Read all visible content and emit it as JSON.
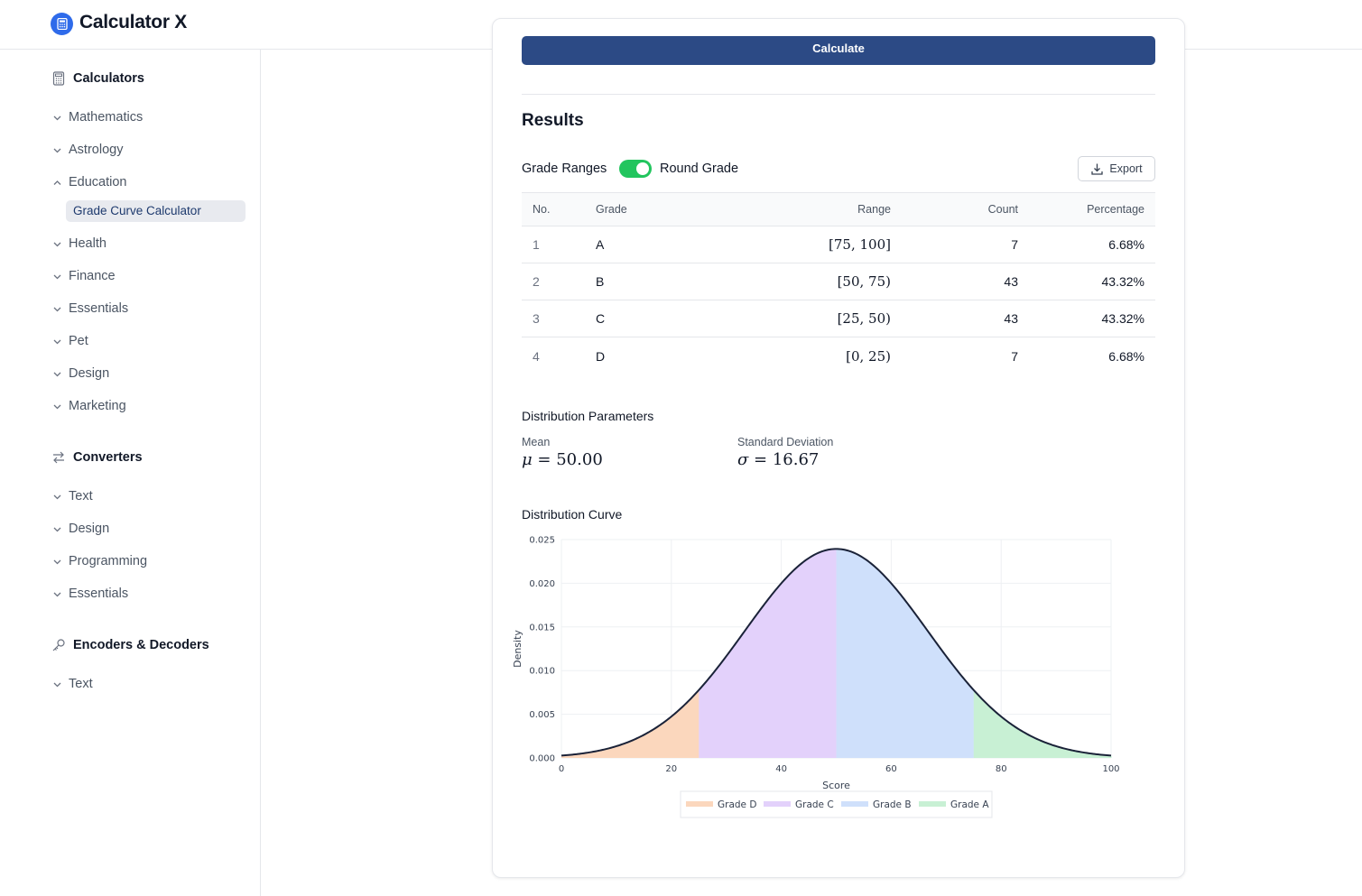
{
  "app": {
    "title": "Calculator X"
  },
  "sidebar": {
    "calculators": {
      "heading": "Calculators",
      "items": [
        {
          "label": "Mathematics"
        },
        {
          "label": "Astrology"
        },
        {
          "label": "Education",
          "expanded": true,
          "children": [
            {
              "label": "Grade Curve Calculator",
              "active": true
            }
          ]
        },
        {
          "label": "Health"
        },
        {
          "label": "Finance"
        },
        {
          "label": "Essentials"
        },
        {
          "label": "Pet"
        },
        {
          "label": "Design"
        },
        {
          "label": "Marketing"
        }
      ]
    },
    "converters": {
      "heading": "Converters",
      "items": [
        {
          "label": "Text"
        },
        {
          "label": "Design"
        },
        {
          "label": "Programming"
        },
        {
          "label": "Essentials"
        }
      ]
    },
    "encoders": {
      "heading": "Encoders & Decoders",
      "items": [
        {
          "label": "Text"
        }
      ]
    }
  },
  "main": {
    "calculate_label": "Calculate",
    "results_title": "Results",
    "grade_ranges_label": "Grade Ranges",
    "round_grade": {
      "label": "Round Grade",
      "on": true
    },
    "export_label": "Export",
    "table": {
      "headers": {
        "no": "No.",
        "grade": "Grade",
        "range": "Range",
        "count": "Count",
        "percentage": "Percentage"
      },
      "rows": [
        {
          "no": "1",
          "grade": "A",
          "range": "[75, 100]",
          "count": "7",
          "percentage": "6.68%"
        },
        {
          "no": "2",
          "grade": "B",
          "range": "[50, 75)",
          "count": "43",
          "percentage": "43.32%"
        },
        {
          "no": "3",
          "grade": "C",
          "range": "[25, 50)",
          "count": "43",
          "percentage": "43.32%"
        },
        {
          "no": "4",
          "grade": "D",
          "range": "[0, 25)",
          "count": "7",
          "percentage": "6.68%"
        }
      ]
    },
    "distribution_parameters": {
      "title": "Distribution Parameters",
      "mean": {
        "label": "Mean",
        "symbol": "μ",
        "value": "50.00"
      },
      "std": {
        "label": "Standard Deviation",
        "symbol": "σ",
        "value": "16.67"
      }
    },
    "curve_title": "Distribution Curve"
  },
  "colors": {
    "accent": "#2c4a85",
    "toggle_on": "#22c55e",
    "logo": "#2f6bea",
    "grade_d": "#fbd7bd",
    "grade_c": "#e3d1fb",
    "grade_b": "#cfe0fb",
    "grade_a": "#c8f0d4"
  },
  "chart_data": {
    "type": "area",
    "title": "",
    "xlabel": "Score",
    "ylabel": "Density",
    "xlim": [
      0,
      100
    ],
    "ylim": [
      0,
      0.025
    ],
    "xticks": [
      0,
      20,
      40,
      60,
      80,
      100
    ],
    "yticks": [
      "0.000",
      "0.005",
      "0.010",
      "0.015",
      "0.020",
      "0.025"
    ],
    "distribution": {
      "kind": "normal",
      "mean": 50,
      "std": 16.67
    },
    "grid": true,
    "legend_position": "bottom-center",
    "series": [
      {
        "name": "Grade D",
        "x_range": [
          0,
          25
        ],
        "color": "#fbd7bd"
      },
      {
        "name": "Grade C",
        "x_range": [
          25,
          50
        ],
        "color": "#e3d1fb"
      },
      {
        "name": "Grade B",
        "x_range": [
          50,
          75
        ],
        "color": "#cfe0fb"
      },
      {
        "name": "Grade A",
        "x_range": [
          75,
          100
        ],
        "color": "#c8f0d4"
      }
    ]
  }
}
